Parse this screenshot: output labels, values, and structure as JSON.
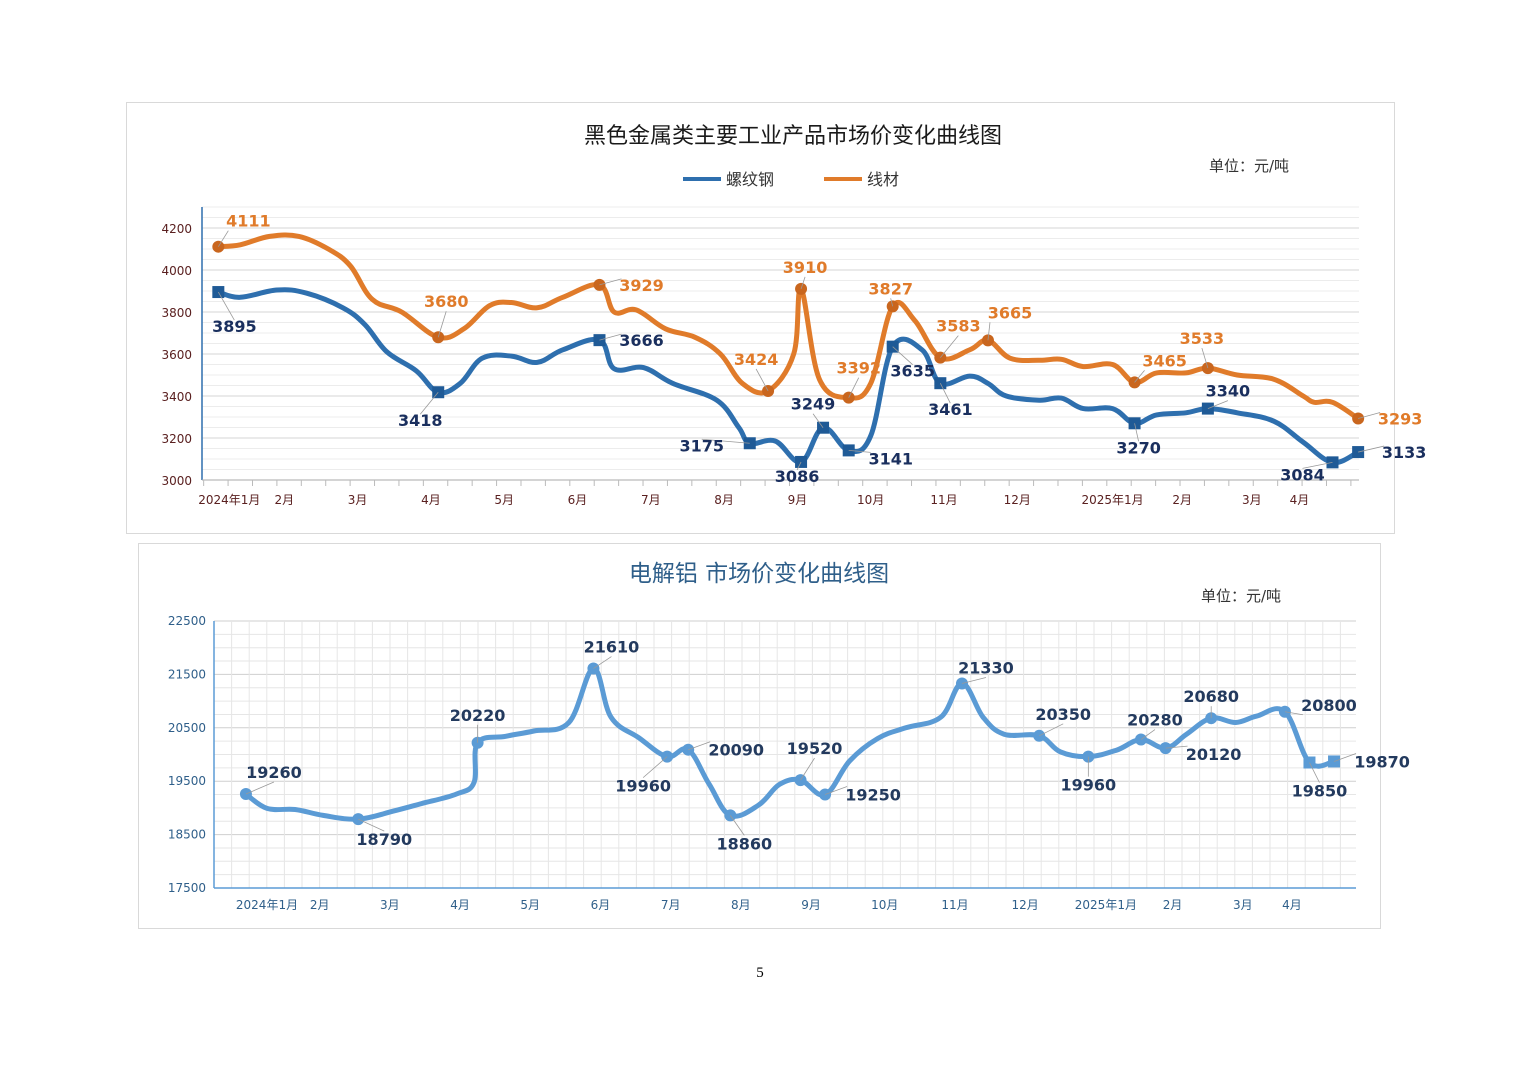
{
  "colors": {
    "steel_rebar": "#2e6fae",
    "steel_wire": "#e07b2a",
    "steel_label_rebar": "#1a2f5e",
    "steel_label_wire": "#e07b2a",
    "alu_line": "#5b9bd5",
    "alu_label": "#233a5e",
    "alu_title": "#2f5f8a"
  },
  "page_number": "5",
  "chart_data": [
    {
      "type": "line",
      "title": "黑色金属类主要工业产品市场价变化曲线图",
      "unit": "单位：元/吨",
      "ylim": [
        3000,
        4200
      ],
      "yticks": [
        3000,
        3200,
        3400,
        3600,
        3800,
        4000,
        4200
      ],
      "grid": true,
      "legend_position": "top-center",
      "x_month_labels": [
        "2024年1月",
        "2月",
        "3月",
        "4月",
        "5月",
        "6月",
        "7月",
        "8月",
        "9月",
        "10月",
        "11月",
        "12月",
        "2025年1月",
        "2月",
        "3月",
        "4月"
      ],
      "series": [
        {
          "name": "螺纹钢",
          "color": "#2e6fae",
          "marker": "square",
          "points": [
            [
              0.1,
              3895
            ],
            [
              0.4,
              3870
            ],
            [
              0.9,
              3905
            ],
            [
              1.3,
              3890
            ],
            [
              1.8,
              3820
            ],
            [
              2.1,
              3740
            ],
            [
              2.4,
              3610
            ],
            [
              2.8,
              3520
            ],
            [
              3.1,
              3418
            ],
            [
              3.4,
              3460
            ],
            [
              3.7,
              3580
            ],
            [
              4.1,
              3590
            ],
            [
              4.45,
              3560
            ],
            [
              4.8,
              3620
            ],
            [
              5.3,
              3666
            ],
            [
              5.5,
              3530
            ],
            [
              5.9,
              3535
            ],
            [
              6.3,
              3460
            ],
            [
              6.9,
              3380
            ],
            [
              7.2,
              3250
            ],
            [
              7.35,
              3175
            ],
            [
              7.7,
              3185
            ],
            [
              8.05,
              3086
            ],
            [
              8.35,
              3249
            ],
            [
              8.7,
              3141
            ],
            [
              9.0,
              3210
            ],
            [
              9.3,
              3635
            ],
            [
              9.7,
              3620
            ],
            [
              9.95,
              3461
            ],
            [
              10.35,
              3495
            ],
            [
              10.6,
              3460
            ],
            [
              10.85,
              3400
            ],
            [
              11.3,
              3380
            ],
            [
              11.6,
              3390
            ],
            [
              11.9,
              3340
            ],
            [
              12.3,
              3340
            ],
            [
              12.6,
              3270
            ],
            [
              12.9,
              3310
            ],
            [
              13.3,
              3320
            ],
            [
              13.6,
              3340
            ],
            [
              14.0,
              3320
            ],
            [
              14.5,
              3280
            ],
            [
              14.9,
              3180
            ],
            [
              15.3,
              3084
            ],
            [
              15.65,
              3133
            ]
          ],
          "labels": [
            [
              0.1,
              3895
            ],
            [
              3.1,
              3418
            ],
            [
              5.3,
              3666
            ],
            [
              7.35,
              3175
            ],
            [
              8.05,
              3086
            ],
            [
              8.35,
              3249
            ],
            [
              8.7,
              3141
            ],
            [
              9.3,
              3635
            ],
            [
              9.95,
              3461
            ],
            [
              12.6,
              3270
            ],
            [
              13.6,
              3340
            ],
            [
              15.3,
              3084
            ],
            [
              15.65,
              3133
            ]
          ]
        },
        {
          "name": "线材",
          "color": "#e07b2a",
          "marker": "circle",
          "points": [
            [
              0.1,
              4111
            ],
            [
              0.4,
              4120
            ],
            [
              0.8,
              4160
            ],
            [
              1.2,
              4160
            ],
            [
              1.6,
              4100
            ],
            [
              1.9,
              4020
            ],
            [
              2.2,
              3860
            ],
            [
              2.6,
              3800
            ],
            [
              3.1,
              3680
            ],
            [
              3.45,
              3720
            ],
            [
              3.8,
              3830
            ],
            [
              4.1,
              3845
            ],
            [
              4.45,
              3820
            ],
            [
              4.8,
              3870
            ],
            [
              5.3,
              3929
            ],
            [
              5.5,
              3800
            ],
            [
              5.8,
              3810
            ],
            [
              6.2,
              3720
            ],
            [
              6.6,
              3680
            ],
            [
              6.95,
              3600
            ],
            [
              7.25,
              3460
            ],
            [
              7.6,
              3424
            ],
            [
              7.95,
              3600
            ],
            [
              8.05,
              3910
            ],
            [
              8.3,
              3480
            ],
            [
              8.7,
              3392
            ],
            [
              9.0,
              3460
            ],
            [
              9.3,
              3827
            ],
            [
              9.6,
              3760
            ],
            [
              9.95,
              3583
            ],
            [
              10.35,
              3620
            ],
            [
              10.6,
              3665
            ],
            [
              10.9,
              3580
            ],
            [
              11.3,
              3570
            ],
            [
              11.6,
              3575
            ],
            [
              11.9,
              3540
            ],
            [
              12.3,
              3550
            ],
            [
              12.6,
              3465
            ],
            [
              12.9,
              3510
            ],
            [
              13.3,
              3510
            ],
            [
              13.6,
              3533
            ],
            [
              14.0,
              3500
            ],
            [
              14.5,
              3480
            ],
            [
              14.9,
              3400
            ],
            [
              15.05,
              3370
            ],
            [
              15.3,
              3370
            ],
            [
              15.65,
              3293
            ]
          ],
          "labels": [
            [
              0.1,
              4111
            ],
            [
              3.1,
              3680
            ],
            [
              5.3,
              3929
            ],
            [
              7.6,
              3424
            ],
            [
              8.05,
              3910
            ],
            [
              8.7,
              3392
            ],
            [
              9.3,
              3827
            ],
            [
              9.95,
              3583
            ],
            [
              10.6,
              3665
            ],
            [
              12.6,
              3465
            ],
            [
              13.6,
              3533
            ],
            [
              15.65,
              3293
            ]
          ]
        }
      ]
    },
    {
      "type": "line",
      "title": "电解铝  市场价变化曲线图",
      "unit": "单位：元/吨",
      "ylim": [
        17500,
        22500
      ],
      "yticks": [
        17500,
        18500,
        19500,
        20500,
        21500,
        22500
      ],
      "grid": true,
      "x_month_labels": [
        "2024年1月",
        "2月",
        "3月",
        "4月",
        "5月",
        "6月",
        "7月",
        "8月",
        "9月",
        "10月",
        "11月",
        "12月",
        "2025年1月",
        "2月",
        "3月",
        "4月"
      ],
      "series": [
        {
          "name": "",
          "color": "#5b9bd5",
          "points": [
            [
              -0.3,
              19260
            ],
            [
              0.0,
              18990
            ],
            [
              0.4,
              18970
            ],
            [
              0.8,
              18860
            ],
            [
              1.3,
              18790
            ],
            [
              1.8,
              18940
            ],
            [
              2.2,
              19080
            ],
            [
              2.7,
              19260
            ],
            [
              2.95,
              19480
            ],
            [
              3.0,
              20220
            ],
            [
              3.4,
              20340
            ],
            [
              3.8,
              20440
            ],
            [
              4.3,
              20600
            ],
            [
              4.65,
              21610
            ],
            [
              4.9,
              20700
            ],
            [
              5.3,
              20310
            ],
            [
              5.7,
              19960
            ],
            [
              6.0,
              20090
            ],
            [
              6.3,
              19440
            ],
            [
              6.6,
              18860
            ],
            [
              7.0,
              19050
            ],
            [
              7.3,
              19440
            ],
            [
              7.6,
              19520
            ],
            [
              7.95,
              19250
            ],
            [
              8.3,
              19880
            ],
            [
              8.7,
              20300
            ],
            [
              9.1,
              20500
            ],
            [
              9.6,
              20700
            ],
            [
              9.9,
              21330
            ],
            [
              10.2,
              20700
            ],
            [
              10.5,
              20380
            ],
            [
              11.0,
              20350
            ],
            [
              11.3,
              20050
            ],
            [
              11.7,
              19960
            ],
            [
              12.1,
              20080
            ],
            [
              12.45,
              20280
            ],
            [
              12.8,
              20120
            ],
            [
              13.1,
              20380
            ],
            [
              13.45,
              20680
            ],
            [
              13.8,
              20600
            ],
            [
              14.1,
              20720
            ],
            [
              14.5,
              20800
            ],
            [
              14.85,
              19850
            ],
            [
              15.2,
              19870
            ]
          ],
          "labels": [
            [
              -0.3,
              19260
            ],
            [
              1.3,
              18790
            ],
            [
              3.0,
              20220
            ],
            [
              4.65,
              21610
            ],
            [
              5.7,
              19960
            ],
            [
              6.0,
              20090
            ],
            [
              6.6,
              18860
            ],
            [
              7.6,
              19520
            ],
            [
              7.95,
              19250
            ],
            [
              9.9,
              21330
            ],
            [
              11.0,
              20350
            ],
            [
              11.7,
              19960
            ],
            [
              12.45,
              20280
            ],
            [
              12.8,
              20120
            ],
            [
              13.45,
              20680
            ],
            [
              14.5,
              20800
            ],
            [
              14.85,
              19850
            ],
            [
              15.2,
              19870
            ]
          ]
        }
      ]
    }
  ]
}
